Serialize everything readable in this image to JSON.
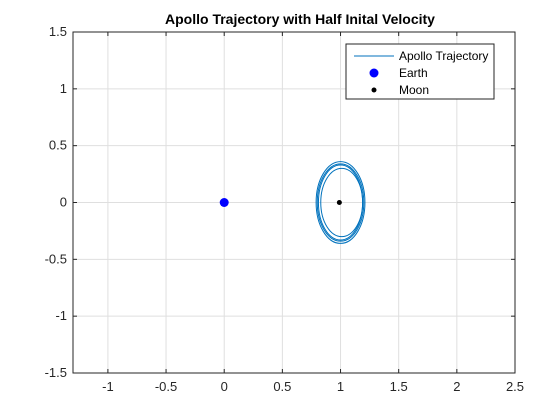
{
  "chart_data": {
    "type": "line",
    "title": "Apollo Trajectory with Half Inital Velocity",
    "xlabel": "",
    "ylabel": "",
    "xlim": [
      -1.3,
      2.5
    ],
    "ylim": [
      -1.5,
      1.5
    ],
    "xticks": [
      -1,
      -0.5,
      0,
      0.5,
      1,
      1.5,
      2,
      2.5
    ],
    "yticks": [
      -1.5,
      -1,
      -0.5,
      0,
      0.5,
      1,
      1.5
    ],
    "xtick_labels": [
      "-1",
      "-0.5",
      "0",
      "0.5",
      "1",
      "1.5",
      "2",
      "2.5"
    ],
    "ytick_labels": [
      "-1.5",
      "-1",
      "-0.5",
      "0",
      "0.5",
      "1",
      "1.5"
    ],
    "grid": true,
    "legend_position": "top-right",
    "trajectory": {
      "name": "Apollo Trajectory",
      "color": "#0072bd",
      "loops": [
        {
          "center": [
            1.0,
            0.0
          ],
          "rx": 0.21,
          "ry": 0.36
        },
        {
          "center": [
            1.0,
            0.0
          ],
          "rx": 0.19,
          "ry": 0.33
        },
        {
          "center": [
            1.01,
            0.0
          ],
          "rx": 0.18,
          "ry": 0.3
        },
        {
          "center": [
            1.0,
            0.0
          ],
          "rx": 0.2,
          "ry": 0.34
        }
      ]
    },
    "bodies": [
      {
        "name": "Earth",
        "x": 0,
        "y": 0,
        "color": "#0000ff",
        "marker": "large-dot"
      },
      {
        "name": "Moon",
        "x": 0.99,
        "y": 0,
        "color": "#000000",
        "marker": "small-dot"
      }
    ]
  }
}
